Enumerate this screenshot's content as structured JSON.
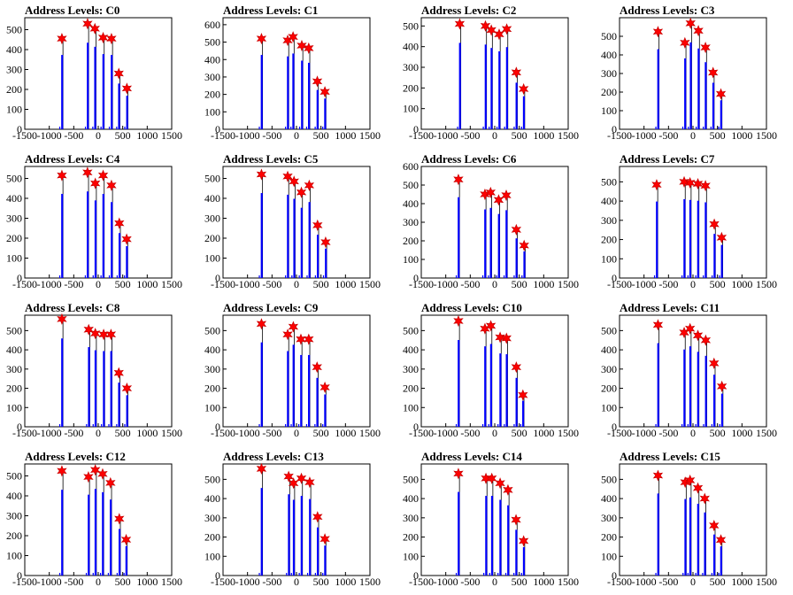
{
  "chart_data": {
    "type": "bar",
    "x_ticks": [
      -1500,
      -1000,
      -500,
      0,
      500,
      1000,
      1500
    ],
    "x_tick_labels": [
      "-1500",
      "-1000",
      "-500",
      "0",
      "500",
      "1000",
      "1500"
    ],
    "xlim": [
      -1500,
      1500
    ],
    "grid": false,
    "colors": {
      "histogram": "#0000ff",
      "spike": "#000000",
      "marker": "#ff0000",
      "marker_edge": "#cc0000"
    },
    "marker": "star",
    "panels": [
      {
        "title": "Address Levels: C0",
        "ylim": [
          0,
          560
        ],
        "y_ticks": [
          0,
          100,
          200,
          300,
          400,
          500
        ],
        "levels": [
          {
            "x": -742,
            "peak": 455
          },
          {
            "x": -218,
            "peak": 530
          },
          {
            "x": -68,
            "peak": 505
          },
          {
            "x": 100,
            "peak": 460
          },
          {
            "x": 270,
            "peak": 455
          },
          {
            "x": 420,
            "peak": 280
          },
          {
            "x": 585,
            "peak": 205
          }
        ]
      },
      {
        "title": "Address Levels: C1",
        "ylim": [
          0,
          640
        ],
        "y_ticks": [
          0,
          100,
          200,
          300,
          400,
          500,
          600
        ],
        "levels": [
          {
            "x": -715,
            "peak": 520
          },
          {
            "x": -180,
            "peak": 510
          },
          {
            "x": -70,
            "peak": 530
          },
          {
            "x": 108,
            "peak": 480
          },
          {
            "x": 250,
            "peak": 465
          },
          {
            "x": 425,
            "peak": 275
          },
          {
            "x": 580,
            "peak": 215
          }
        ]
      },
      {
        "title": "Address Levels: C2",
        "ylim": [
          0,
          540
        ],
        "y_ticks": [
          0,
          100,
          200,
          300,
          400,
          500
        ],
        "levels": [
          {
            "x": -715,
            "peak": 510
          },
          {
            "x": -190,
            "peak": 500
          },
          {
            "x": -70,
            "peak": 480
          },
          {
            "x": 90,
            "peak": 460
          },
          {
            "x": 245,
            "peak": 485
          },
          {
            "x": 440,
            "peak": 275
          },
          {
            "x": 590,
            "peak": 195
          }
        ]
      },
      {
        "title": "Address Levels: C3",
        "ylim": [
          0,
          600
        ],
        "y_ticks": [
          0,
          100,
          200,
          300,
          400,
          500
        ],
        "levels": [
          {
            "x": -715,
            "peak": 525
          },
          {
            "x": -165,
            "peak": 465
          },
          {
            "x": -50,
            "peak": 570
          },
          {
            "x": 110,
            "peak": 530
          },
          {
            "x": 255,
            "peak": 440
          },
          {
            "x": 410,
            "peak": 305
          },
          {
            "x": 570,
            "peak": 190
          }
        ]
      },
      {
        "title": "Address Levels: C4",
        "ylim": [
          0,
          560
        ],
        "y_ticks": [
          0,
          100,
          200,
          300,
          400,
          500
        ],
        "levels": [
          {
            "x": -742,
            "peak": 515
          },
          {
            "x": -220,
            "peak": 530
          },
          {
            "x": -60,
            "peak": 475
          },
          {
            "x": 100,
            "peak": 515
          },
          {
            "x": 270,
            "peak": 465
          },
          {
            "x": 430,
            "peak": 275
          },
          {
            "x": 580,
            "peak": 195
          }
        ]
      },
      {
        "title": "Address Levels: C5",
        "ylim": [
          0,
          560
        ],
        "y_ticks": [
          0,
          100,
          200,
          300,
          400,
          500
        ],
        "levels": [
          {
            "x": -715,
            "peak": 520
          },
          {
            "x": -180,
            "peak": 510
          },
          {
            "x": -50,
            "peak": 485
          },
          {
            "x": 100,
            "peak": 430
          },
          {
            "x": 260,
            "peak": 465
          },
          {
            "x": 430,
            "peak": 265
          },
          {
            "x": 595,
            "peak": 180
          }
        ]
      },
      {
        "title": "Address Levels: C6",
        "ylim": [
          0,
          600
        ],
        "y_ticks": [
          0,
          100,
          200,
          300,
          400,
          500,
          600
        ],
        "levels": [
          {
            "x": -742,
            "peak": 530
          },
          {
            "x": -200,
            "peak": 450
          },
          {
            "x": -85,
            "peak": 460
          },
          {
            "x": 80,
            "peak": 420
          },
          {
            "x": 235,
            "peak": 445
          },
          {
            "x": 440,
            "peak": 260
          },
          {
            "x": 600,
            "peak": 175
          }
        ]
      },
      {
        "title": "Address Levels: C7",
        "ylim": [
          0,
          580
        ],
        "y_ticks": [
          0,
          100,
          200,
          300,
          400,
          500
        ],
        "levels": [
          {
            "x": -742,
            "peak": 485
          },
          {
            "x": -180,
            "peak": 500
          },
          {
            "x": -60,
            "peak": 495
          },
          {
            "x": 100,
            "peak": 490
          },
          {
            "x": 255,
            "peak": 480
          },
          {
            "x": 435,
            "peak": 280
          },
          {
            "x": 585,
            "peak": 210
          }
        ]
      },
      {
        "title": "Address Levels: C8",
        "ylim": [
          0,
          580
        ],
        "y_ticks": [
          0,
          100,
          200,
          300,
          400,
          500
        ],
        "levels": [
          {
            "x": -742,
            "peak": 560
          },
          {
            "x": -195,
            "peak": 505
          },
          {
            "x": -60,
            "peak": 485
          },
          {
            "x": 110,
            "peak": 480
          },
          {
            "x": 260,
            "peak": 480
          },
          {
            "x": 420,
            "peak": 280
          },
          {
            "x": 585,
            "peak": 200
          }
        ]
      },
      {
        "title": "Address Levels: C9",
        "ylim": [
          0,
          580
        ],
        "y_ticks": [
          0,
          100,
          200,
          300,
          400,
          500
        ],
        "levels": [
          {
            "x": -715,
            "peak": 535
          },
          {
            "x": -180,
            "peak": 480
          },
          {
            "x": -65,
            "peak": 520
          },
          {
            "x": 90,
            "peak": 455
          },
          {
            "x": 250,
            "peak": 455
          },
          {
            "x": 420,
            "peak": 310
          },
          {
            "x": 580,
            "peak": 205
          }
        ]
      },
      {
        "title": "Address Levels: C10",
        "ylim": [
          0,
          580
        ],
        "y_ticks": [
          0,
          100,
          200,
          300,
          400,
          500
        ],
        "levels": [
          {
            "x": -742,
            "peak": 550
          },
          {
            "x": -200,
            "peak": 510
          },
          {
            "x": -80,
            "peak": 525
          },
          {
            "x": 110,
            "peak": 465
          },
          {
            "x": 240,
            "peak": 460
          },
          {
            "x": 440,
            "peak": 310
          },
          {
            "x": 575,
            "peak": 165
          }
        ]
      },
      {
        "title": "Address Levels: C11",
        "ylim": [
          0,
          580
        ],
        "y_ticks": [
          0,
          100,
          200,
          300,
          400,
          500
        ],
        "levels": [
          {
            "x": -715,
            "peak": 530
          },
          {
            "x": -180,
            "peak": 490
          },
          {
            "x": -60,
            "peak": 510
          },
          {
            "x": 100,
            "peak": 475
          },
          {
            "x": 260,
            "peak": 450
          },
          {
            "x": 430,
            "peak": 330
          },
          {
            "x": 590,
            "peak": 210
          }
        ]
      },
      {
        "title": "Address Levels: C12",
        "ylim": [
          0,
          560
        ],
        "y_ticks": [
          0,
          100,
          200,
          300,
          400,
          500
        ],
        "levels": [
          {
            "x": -742,
            "peak": 525
          },
          {
            "x": -200,
            "peak": 495
          },
          {
            "x": -60,
            "peak": 530
          },
          {
            "x": 90,
            "peak": 510
          },
          {
            "x": 250,
            "peak": 465
          },
          {
            "x": 430,
            "peak": 285
          },
          {
            "x": 570,
            "peak": 180
          }
        ]
      },
      {
        "title": "Address Levels: C13",
        "ylim": [
          0,
          580
        ],
        "y_ticks": [
          0,
          100,
          200,
          300,
          400,
          500
        ],
        "levels": [
          {
            "x": -715,
            "peak": 555
          },
          {
            "x": -160,
            "peak": 515
          },
          {
            "x": -60,
            "peak": 480
          },
          {
            "x": 100,
            "peak": 505
          },
          {
            "x": 270,
            "peak": 485
          },
          {
            "x": 430,
            "peak": 305
          },
          {
            "x": 580,
            "peak": 190
          }
        ]
      },
      {
        "title": "Address Levels: C14",
        "ylim": [
          0,
          580
        ],
        "y_ticks": [
          0,
          100,
          200,
          300,
          400,
          500
        ],
        "levels": [
          {
            "x": -742,
            "peak": 530
          },
          {
            "x": -180,
            "peak": 505
          },
          {
            "x": -60,
            "peak": 505
          },
          {
            "x": 110,
            "peak": 480
          },
          {
            "x": 270,
            "peak": 445
          },
          {
            "x": 435,
            "peak": 290
          },
          {
            "x": 590,
            "peak": 180
          }
        ]
      },
      {
        "title": "Address Levels: C15",
        "ylim": [
          0,
          580
        ],
        "y_ticks": [
          0,
          100,
          200,
          300,
          400,
          500
        ],
        "levels": [
          {
            "x": -715,
            "peak": 520
          },
          {
            "x": -160,
            "peak": 485
          },
          {
            "x": -60,
            "peak": 495
          },
          {
            "x": 100,
            "peak": 455
          },
          {
            "x": 240,
            "peak": 400
          },
          {
            "x": 430,
            "peak": 260
          },
          {
            "x": 570,
            "peak": 185
          }
        ]
      }
    ]
  }
}
